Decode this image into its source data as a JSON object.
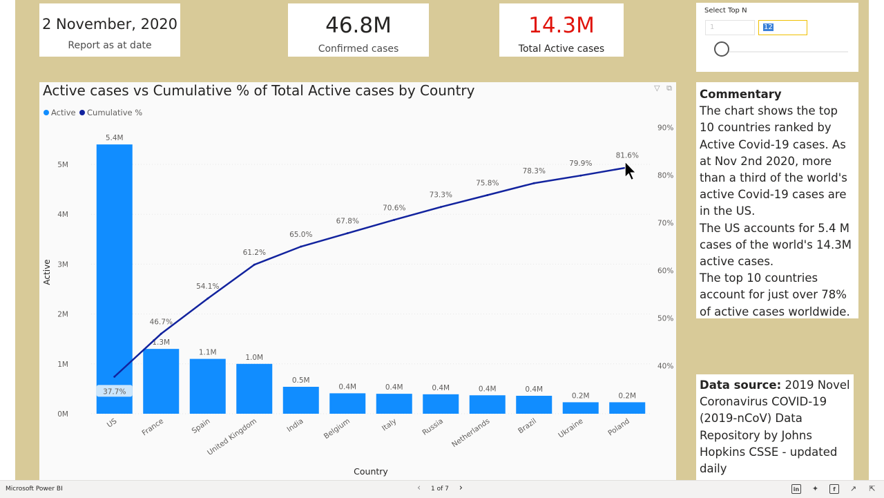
{
  "kpis": {
    "date": {
      "value": "2 November, 2020",
      "label": "Report as at date"
    },
    "confirmed": {
      "value": "46.8M",
      "label": "Confirmed cases"
    },
    "active": {
      "value": "14.3M",
      "label": "Total Active cases"
    }
  },
  "slicer": {
    "title": "Select Top N",
    "min_value": "1",
    "max_value": "12"
  },
  "commentary": {
    "title": "Commentary",
    "body": "The chart shows the top 10 countries ranked by Active Covid-19 cases. As at Nov 2nd 2020, more than a third of the world's active Covid-19 cases are in the US.",
    "body2": "The US accounts for 5.4 M cases of the world's 14.3M active cases.",
    "body3": "The top 10 countries account for just over 78% of active cases worldwide."
  },
  "datasource": {
    "label": "Data source:",
    "text": "2019 Novel Coronavirus COVID-19 (2019-nCoV) Data Repository by Johns Hopkins CSSE - updated daily"
  },
  "status_bar": {
    "app_name": "Microsoft Power BI",
    "page_indicator": "1 of 7"
  },
  "colors": {
    "bar": "#118dff",
    "line": "#12239e",
    "active_kpi": "#e0130b",
    "background": "#d8ca98"
  },
  "icons": [
    "filter-icon",
    "focus-mode-icon",
    "linkedin-icon",
    "twitter-icon",
    "facebook-icon",
    "share-icon",
    "expand-icon"
  ],
  "chart_data": {
    "type": "bar",
    "title": "Active cases vs Cumulative % of Total Active cases by Country",
    "xlabel": "Country",
    "ylabel": "Active",
    "legend": [
      "Active",
      "Cumulative %"
    ],
    "legend_position": "top-left",
    "categories": [
      "US",
      "France",
      "Spain",
      "United Kingdom",
      "India",
      "Belgium",
      "Italy",
      "Russia",
      "Netherlands",
      "Brazil",
      "Ukraine",
      "Poland"
    ],
    "series": [
      {
        "name": "Active",
        "type": "bar",
        "axis": "left",
        "values": [
          5.4,
          1.3,
          1.1,
          1.0,
          0.54,
          0.41,
          0.4,
          0.39,
          0.37,
          0.36,
          0.23,
          0.23
        ],
        "labels": [
          "5.4M",
          "1.3M",
          "1.1M",
          "1.0M",
          "0.5M",
          "0.4M",
          "0.4M",
          "0.4M",
          "0.4M",
          "0.4M",
          "0.2M",
          "0.2M"
        ]
      },
      {
        "name": "Cumulative %",
        "type": "line",
        "axis": "right",
        "values": [
          37.7,
          46.7,
          54.1,
          61.2,
          65.0,
          67.8,
          70.6,
          73.3,
          75.8,
          78.3,
          79.9,
          81.6
        ],
        "labels": [
          "37.7%",
          "46.7%",
          "54.1%",
          "61.2%",
          "65.0%",
          "67.8%",
          "70.6%",
          "73.3%",
          "75.8%",
          "78.3%",
          "79.9%",
          "81.6%"
        ]
      }
    ],
    "y_left": {
      "ticks": [
        0,
        1,
        2,
        3,
        4,
        5
      ],
      "tick_labels": [
        "0M",
        "1M",
        "2M",
        "3M",
        "4M",
        "5M"
      ],
      "range": [
        0,
        5.4
      ]
    },
    "y_right": {
      "ticks": [
        40,
        50,
        60,
        70,
        80,
        90
      ],
      "tick_labels": [
        "40%",
        "50%",
        "60%",
        "70%",
        "80%",
        "90%"
      ],
      "range": [
        32.9,
        91.2
      ]
    },
    "grid": true
  }
}
